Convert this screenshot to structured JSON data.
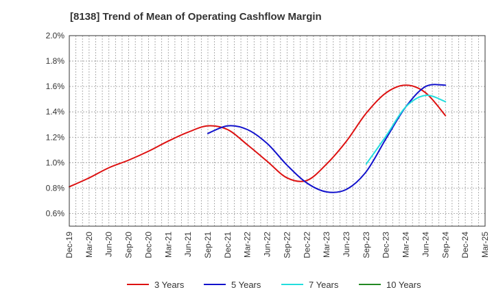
{
  "chart_data": {
    "type": "line",
    "title": "[8138]  Trend of Mean of Operating Cashflow Margin",
    "xlabel": "",
    "ylabel": "",
    "ylim": [
      0.5,
      2.0
    ],
    "yticks": [
      "2.0%",
      "1.8%",
      "1.6%",
      "1.4%",
      "1.2%",
      "1.0%",
      "0.8%",
      "0.6%"
    ],
    "ytick_values": [
      2.0,
      1.8,
      1.6,
      1.4,
      1.2,
      1.0,
      0.8,
      0.6
    ],
    "grid": true,
    "legend_position": "bottom",
    "categories": [
      "Dec-19",
      "Mar-20",
      "Jun-20",
      "Sep-20",
      "Dec-20",
      "Mar-21",
      "Jun-21",
      "Sep-21",
      "Dec-21",
      "Mar-22",
      "Jun-22",
      "Sep-22",
      "Dec-22",
      "Mar-23",
      "Jun-23",
      "Sep-23",
      "Dec-23",
      "Mar-24",
      "Jun-24",
      "Sep-24",
      "Dec-24",
      "Mar-25"
    ],
    "x_axis_labels": [
      "Dec-19",
      "Mar-20",
      "Jun-20",
      "Sep-20",
      "Dec-20",
      "Mar-21",
      "Jun-21",
      "Sep-21",
      "Dec-21",
      "Mar-22",
      "Jun-22",
      "Sep-22",
      "Dec-22",
      "Mar-23",
      "Jun-23",
      "Sep-23",
      "Dec-23",
      "Mar-24",
      "Jun-24",
      "Sep-24",
      "Dec-24",
      "Mar-25"
    ],
    "series": [
      {
        "name": "3 Years",
        "color": "#dd1111",
        "values": [
          0.81,
          0.88,
          0.96,
          1.02,
          1.09,
          1.17,
          1.24,
          1.29,
          1.26,
          1.14,
          1.01,
          0.88,
          0.86,
          0.99,
          1.17,
          1.39,
          1.55,
          1.61,
          1.55,
          1.37,
          null,
          null
        ]
      },
      {
        "name": "5 Years",
        "color": "#1111cc",
        "values": [
          null,
          null,
          null,
          null,
          null,
          null,
          null,
          1.23,
          1.29,
          1.26,
          1.15,
          0.98,
          0.84,
          0.77,
          0.79,
          0.93,
          1.19,
          1.44,
          1.6,
          1.61,
          null,
          null
        ]
      },
      {
        "name": "7 Years",
        "color": "#22dddd",
        "values": [
          null,
          null,
          null,
          null,
          null,
          null,
          null,
          null,
          null,
          null,
          null,
          null,
          null,
          null,
          null,
          0.99,
          1.21,
          1.44,
          1.53,
          1.48,
          null,
          null
        ]
      },
      {
        "name": "10 Years",
        "color": "#228822",
        "values": [
          null,
          null,
          null,
          null,
          null,
          null,
          null,
          null,
          null,
          null,
          null,
          null,
          null,
          null,
          null,
          null,
          null,
          null,
          null,
          null,
          null,
          null
        ]
      }
    ]
  }
}
